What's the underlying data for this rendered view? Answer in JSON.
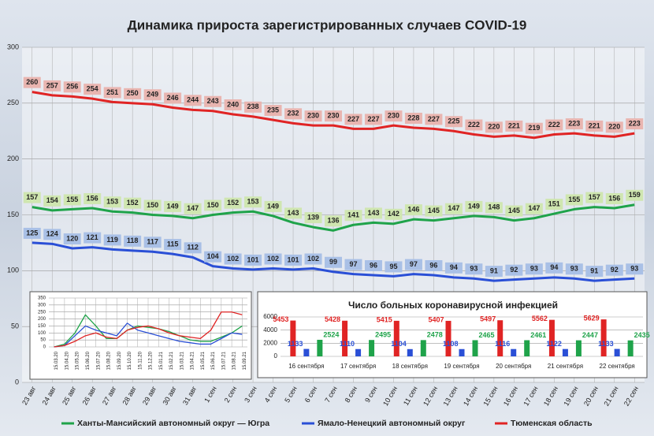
{
  "chart_data": [
    {
      "type": "line",
      "title": "Динамика прироста зарегистрированных случаев COVID-19",
      "categories": [
        "23 авг",
        "24 авг",
        "25 авг",
        "26 авг",
        "27 авг",
        "28 авг",
        "29 авг",
        "30 авг",
        "31 авг",
        "1 сен",
        "2 сен",
        "3 сен",
        "4 сен",
        "5 сен",
        "6 сен",
        "7 сен",
        "8 сен",
        "9 сен",
        "10 сен",
        "11 сен",
        "12 сен",
        "13 сен",
        "14 сен",
        "15 сен",
        "16 сен",
        "17 сен",
        "18 сен",
        "19 сен",
        "20 сен",
        "21 сен",
        "22 сен"
      ],
      "series": [
        {
          "name": "Ханты-Мансийский автономный округ — Югра",
          "color": "#1fa34a",
          "label_color": "#cfe6b0",
          "values": [
            157,
            154,
            155,
            156,
            153,
            152,
            150,
            149,
            147,
            150,
            152,
            153,
            149,
            143,
            139,
            136,
            141,
            143,
            142,
            146,
            145,
            147,
            149,
            148,
            145,
            147,
            151,
            155,
            157,
            156,
            159
          ]
        },
        {
          "name": "Ямало-Ненецкий автономный округ",
          "color": "#2a4fd6",
          "label_color": "#a9c0e6",
          "values": [
            125,
            124,
            120,
            121,
            119,
            118,
            117,
            115,
            112,
            104,
            102,
            101,
            102,
            101,
            102,
            99,
            97,
            96,
            95,
            97,
            96,
            94,
            93,
            91,
            92,
            93,
            94,
            93,
            91,
            92,
            93
          ]
        },
        {
          "name": "Тюменская область",
          "color": "#e02424",
          "label_color": "#e9b5b0",
          "values": [
            260,
            257,
            256,
            254,
            251,
            250,
            249,
            246,
            244,
            243,
            240,
            238,
            235,
            232,
            230,
            230,
            227,
            227,
            230,
            228,
            227,
            225,
            222,
            220,
            221,
            219,
            222,
            223,
            221,
            220,
            223
          ]
        }
      ],
      "ylim": [
        0,
        300
      ],
      "yticks": [
        0,
        50,
        100,
        150,
        200,
        250,
        300
      ],
      "grid": true,
      "data_labels": true,
      "legend": "bottom"
    },
    {
      "type": "line",
      "categories": [
        "15.03.20",
        "15.04.20",
        "15.05.20",
        "15.06.20",
        "15.07.20",
        "15.08.20",
        "15.09.20",
        "15.10.20",
        "15.11.20",
        "15.12.20",
        "15.01.21",
        "15.02.21",
        "15.03.21",
        "15.04.21",
        "15.05.21",
        "15.06.21",
        "15.07.21",
        "15.08.21",
        "15.09.21"
      ],
      "series": [
        {
          "color": "#1fa34a",
          "values": [
            0,
            20,
            100,
            230,
            150,
            60,
            60,
            120,
            150,
            140,
            130,
            110,
            80,
            50,
            40,
            40,
            70,
            100,
            150
          ]
        },
        {
          "color": "#2a4fd6",
          "values": [
            0,
            10,
            80,
            150,
            120,
            100,
            80,
            170,
            120,
            100,
            80,
            60,
            40,
            30,
            20,
            20,
            60,
            100,
            90
          ]
        },
        {
          "color": "#e02424",
          "values": [
            0,
            10,
            40,
            80,
            100,
            70,
            60,
            120,
            140,
            150,
            130,
            100,
            80,
            70,
            60,
            120,
            250,
            250,
            230
          ]
        }
      ],
      "ylim": [
        0,
        350
      ],
      "yticks": [
        0,
        50,
        100,
        150,
        200,
        250,
        300,
        350
      ],
      "grid": true
    },
    {
      "type": "bar",
      "title": "Число больных коронавирусной инфекцией",
      "categories": [
        "16 сентября",
        "17 сентября",
        "18 сентября",
        "19 сентября",
        "20 сентября",
        "21 сентября",
        "22 сентября"
      ],
      "series": [
        {
          "color": "#e02424",
          "values": [
            5453,
            5428,
            5415,
            5407,
            5497,
            5562,
            5629
          ]
        },
        {
          "color": "#2a4fd6",
          "values": [
            1133,
            1110,
            1104,
            1108,
            1116,
            1122,
            1133
          ]
        },
        {
          "color": "#1fa34a",
          "values": [
            2524,
            2495,
            2478,
            2465,
            2461,
            2447,
            2435
          ]
        }
      ],
      "ylim": [
        0,
        6000
      ],
      "yticks": [
        0,
        2000,
        4000,
        6000
      ],
      "grid": true,
      "data_labels": true
    }
  ]
}
